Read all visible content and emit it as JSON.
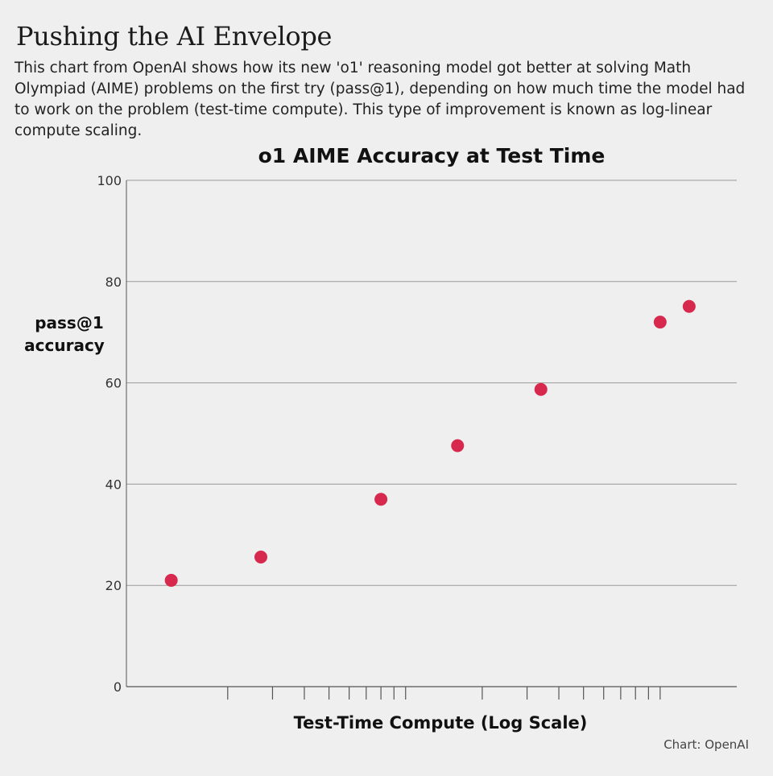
{
  "header": {
    "headline": "Pushing the AI Envelope",
    "dek": "This chart from OpenAI shows how its new 'o1' reasoning model got better at solving Math Olympiad (AIME) problems on the first try (pass@1), depending on how much time the model had to work on the problem (test-time compute). This type of improvement is known as log-linear compute scaling."
  },
  "credit": "Chart:  OpenAI",
  "colors": {
    "point": "#d6294d",
    "grid": "#9a9a9a",
    "background": "#efefef"
  },
  "chart_data": {
    "type": "scatter",
    "title": "o1 AIME Accuracy at Test Time",
    "xlabel": "Test-Time Compute (Log Scale)",
    "ylabel_lines": [
      "pass@1",
      "accuracy"
    ],
    "x_scale": "log",
    "x_tick_labels": "none",
    "ylim": [
      0,
      100
    ],
    "y_ticks": [
      0,
      20,
      40,
      60,
      80,
      100
    ],
    "grid": "horizontal",
    "points": [
      {
        "x": 1.2,
        "y": 21
      },
      {
        "x": 2.7,
        "y": 25.6
      },
      {
        "x": 8,
        "y": 37
      },
      {
        "x": 16,
        "y": 47.6
      },
      {
        "x": 34,
        "y": 58.7
      },
      {
        "x": 100,
        "y": 72
      },
      {
        "x": 130,
        "y": 75.1
      }
    ]
  }
}
